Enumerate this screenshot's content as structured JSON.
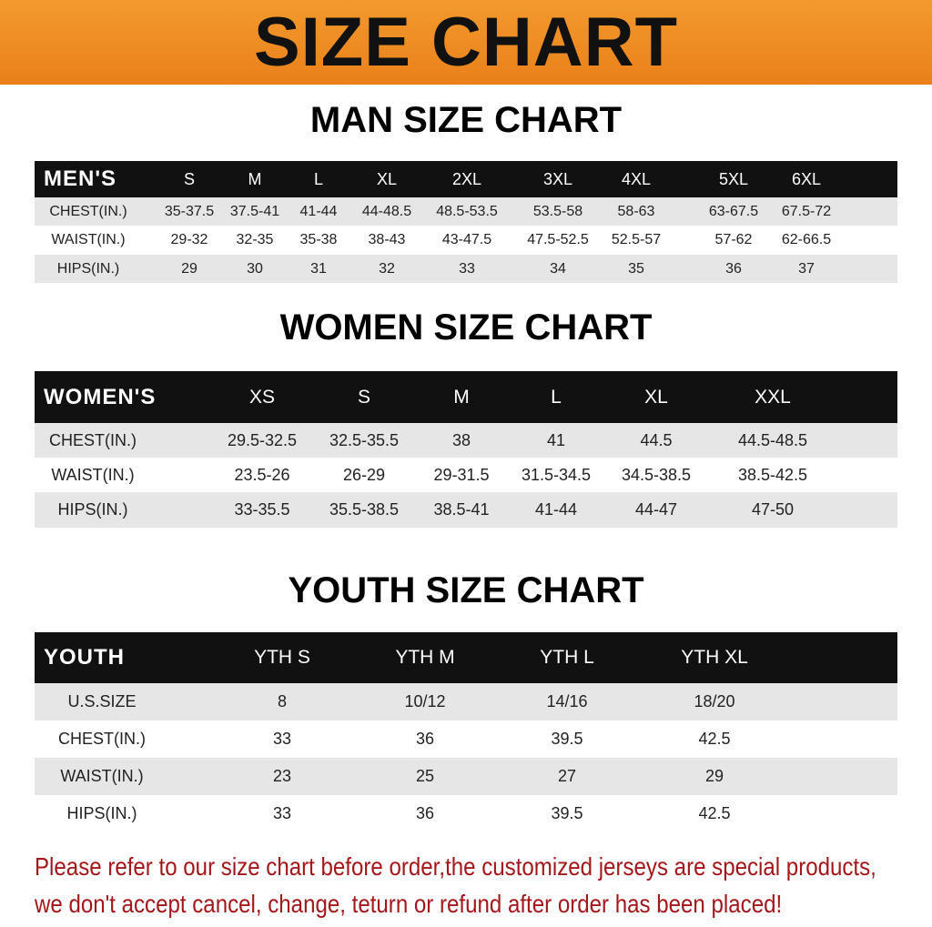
{
  "banner_title": "SIZE CHART",
  "colors": {
    "banner": "#f08a1e",
    "header_row": "#111111",
    "note": "#a3171b"
  },
  "men": {
    "title": "MAN SIZE CHART",
    "header": [
      "MEN'S",
      "S",
      "M",
      "L",
      "XL",
      "2XL",
      "3XL",
      "4XL",
      "5XL",
      "6XL"
    ],
    "rows": [
      [
        "CHEST(IN.)",
        "35-37.5",
        "37.5-41",
        "41-44",
        "44-48.5",
        "48.5-53.5",
        "53.5-58",
        "58-63",
        "63-67.5",
        "67.5-72"
      ],
      [
        "WAIST(IN.)",
        "29-32",
        "32-35",
        "35-38",
        "38-43",
        "43-47.5",
        "47.5-52.5",
        "52.5-57",
        "57-62",
        "62-66.5"
      ],
      [
        "HIPS(IN.)",
        "29",
        "30",
        "31",
        "32",
        "33",
        "34",
        "35",
        "36",
        "37"
      ]
    ]
  },
  "women": {
    "title": "WOMEN SIZE CHART",
    "header": [
      "WOMEN'S",
      "XS",
      "S",
      "M",
      "L",
      "XL",
      "XXL"
    ],
    "rows": [
      [
        "CHEST(IN.)",
        "29.5-32.5",
        "32.5-35.5",
        "38",
        "41",
        "44.5",
        "44.5-48.5"
      ],
      [
        "WAIST(IN.)",
        "23.5-26",
        "26-29",
        "29-31.5",
        "31.5-34.5",
        "34.5-38.5",
        "38.5-42.5"
      ],
      [
        "HIPS(IN.)",
        "33-35.5",
        "35.5-38.5",
        "38.5-41",
        "41-44",
        "44-47",
        "47-50"
      ]
    ]
  },
  "youth": {
    "title": "YOUTH SIZE CHART",
    "header": [
      "YOUTH",
      "YTH S",
      "YTH M",
      "YTH L",
      "YTH XL"
    ],
    "rows": [
      [
        "U.S.SIZE",
        "8",
        "10/12",
        "14/16",
        "18/20"
      ],
      [
        "CHEST(IN.)",
        "33",
        "36",
        "39.5",
        "42.5"
      ],
      [
        "WAIST(IN.)",
        "23",
        "25",
        "27",
        "29"
      ],
      [
        "HIPS(IN.)",
        "33",
        "36",
        "39.5",
        "42.5"
      ]
    ]
  },
  "note": {
    "line1": "Please refer to our size chart before order,the customized jerseys are special products,",
    "line2": "we don't accept cancel, change, teturn or refund after order has been placed!"
  }
}
